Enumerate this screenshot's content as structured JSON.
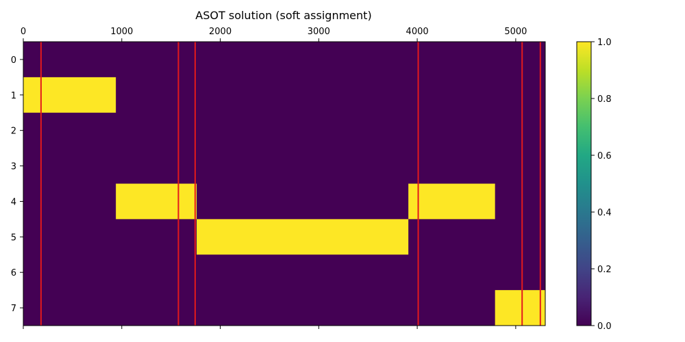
{
  "chart_data": {
    "type": "heatmap",
    "title": "ASOT solution (soft assignment)",
    "xlabel": "",
    "ylabel": "",
    "x_axis_position": "top",
    "xlim": [
      0,
      5300
    ],
    "x_ticks": [
      0,
      1000,
      2000,
      3000,
      4000,
      5000
    ],
    "y_ticks": [
      0,
      1,
      2,
      3,
      4,
      5,
      6,
      7
    ],
    "rows": 8,
    "colormap": "viridis",
    "background_value": 0.0,
    "segments": [
      {
        "row": 1,
        "x_start": 0,
        "x_end": 940,
        "value": 1.0
      },
      {
        "row": 4,
        "x_start": 940,
        "x_end": 1760,
        "value": 1.0
      },
      {
        "row": 5,
        "x_start": 1760,
        "x_end": 3910,
        "value": 1.0
      },
      {
        "row": 4,
        "x_start": 3910,
        "x_end": 4790,
        "value": 1.0
      },
      {
        "row": 7,
        "x_start": 4790,
        "x_end": 5300,
        "value": 1.0
      }
    ],
    "vertical_lines": {
      "color": "#e31a1c",
      "x": [
        180,
        1575,
        1745,
        4010,
        5065,
        5250
      ]
    },
    "colorbar": {
      "range": [
        0.0,
        1.0
      ],
      "ticks": [
        "0.0",
        "0.2",
        "0.4",
        "0.6",
        "0.8",
        "1.0"
      ]
    },
    "colors": {
      "low": "#440154",
      "high": "#fde725"
    }
  }
}
